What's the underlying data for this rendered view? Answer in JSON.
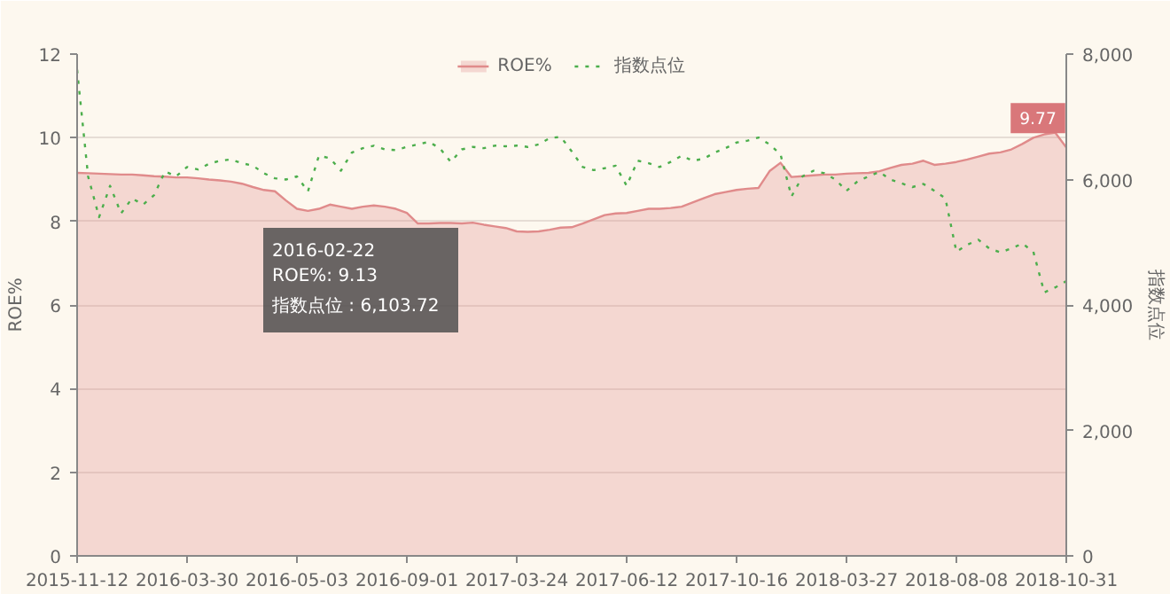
{
  "chart_data": {
    "type": "area",
    "categories": [
      "2015-11-12",
      null,
      null,
      null,
      null,
      null,
      null,
      null,
      null,
      null,
      "2016-03-30",
      null,
      null,
      null,
      null,
      null,
      null,
      null,
      null,
      null,
      "2016-05-03",
      null,
      null,
      null,
      null,
      null,
      null,
      null,
      null,
      null,
      "2016-09-01",
      null,
      null,
      null,
      null,
      null,
      null,
      null,
      null,
      null,
      "2017-03-24",
      null,
      null,
      null,
      null,
      null,
      null,
      null,
      null,
      null,
      "2017-06-12",
      null,
      null,
      null,
      null,
      null,
      null,
      null,
      null,
      null,
      "2017-10-16",
      null,
      null,
      null,
      null,
      null,
      null,
      null,
      null,
      null,
      "2018-03-27",
      null,
      null,
      null,
      null,
      null,
      null,
      null,
      null,
      null,
      "2018-08-08",
      null,
      null,
      null,
      null,
      null,
      null,
      null,
      null,
      null,
      "2018-10-31"
    ],
    "series": [
      {
        "name": "ROE%",
        "color": "#e08b8b",
        "values": [
          9.16,
          9.15,
          9.14,
          9.13,
          9.12,
          9.12,
          9.1,
          9.08,
          9.07,
          9.05,
          9.05,
          9.03,
          9.0,
          8.98,
          8.95,
          8.9,
          8.82,
          8.75,
          8.72,
          8.5,
          8.3,
          8.25,
          8.3,
          8.4,
          8.35,
          8.3,
          8.35,
          8.38,
          8.35,
          8.3,
          8.2,
          7.95,
          7.95,
          7.96,
          7.96,
          7.95,
          7.97,
          7.92,
          7.88,
          7.84,
          7.76,
          7.75,
          7.76,
          7.8,
          7.85,
          7.86,
          7.95,
          8.05,
          8.15,
          8.19,
          8.2,
          8.25,
          8.3,
          8.3,
          8.32,
          8.35,
          8.45,
          8.55,
          8.65,
          8.7,
          8.75,
          8.78,
          8.8,
          9.2,
          9.4,
          9.06,
          9.08,
          9.1,
          9.12,
          9.12,
          9.14,
          9.15,
          9.16,
          9.2,
          9.28,
          9.35,
          9.38,
          9.45,
          9.35,
          9.38,
          9.42,
          9.48,
          9.55,
          9.62,
          9.65,
          9.72,
          9.85,
          10.0,
          10.08,
          10.12,
          9.77
        ]
      },
      {
        "name": "指数点位",
        "type": "line",
        "axis": "y2",
        "color": "#4cae4c",
        "line_style": "dotted",
        "values": [
          7750,
          6050,
          5400,
          5900,
          5460,
          5700,
          5600,
          5750,
          6130,
          6050,
          6200,
          6160,
          6250,
          6300,
          6320,
          6260,
          6220,
          6100,
          6020,
          6000,
          6050,
          5810,
          6380,
          6340,
          6140,
          6430,
          6500,
          6540,
          6480,
          6470,
          6520,
          6560,
          6600,
          6500,
          6280,
          6480,
          6520,
          6500,
          6540,
          6530,
          6540,
          6520,
          6560,
          6660,
          6680,
          6450,
          6200,
          6150,
          6180,
          6220,
          5900,
          6300,
          6260,
          6200,
          6280,
          6380,
          6300,
          6330,
          6430,
          6500,
          6590,
          6620,
          6670,
          6560,
          6400,
          5730,
          6050,
          6140,
          6100,
          6000,
          5820,
          5970,
          6050,
          6120,
          6000,
          5940,
          5880,
          5930,
          5820,
          5700,
          4850,
          4960,
          5040,
          4900,
          4840,
          4900,
          4980,
          4850,
          4200,
          4280,
          4380
        ]
      }
    ],
    "ylabel": "ROE%",
    "y2label": "指数点位",
    "ylim": [
      0,
      12
    ],
    "yticks": [
      0,
      2,
      4,
      6,
      8,
      10,
      12
    ],
    "y2lim": [
      0,
      8000
    ],
    "y2ticks": [
      {
        "value": 0,
        "label": "0"
      },
      {
        "value": 2000,
        "label": "2,000"
      },
      {
        "value": 4000,
        "label": "4,000"
      },
      {
        "value": 6000,
        "label": "6,000"
      },
      {
        "value": 8000,
        "label": "8,000"
      }
    ],
    "grid": "y",
    "legend": "top",
    "marker": "none",
    "annotations": [
      "2016-02-22",
      "ROE%: 9.13",
      "指数点位 : 6,103.72",
      {
        "text": "9.77",
        "x": "2018-10-31",
        "y": 9.77
      }
    ]
  }
}
